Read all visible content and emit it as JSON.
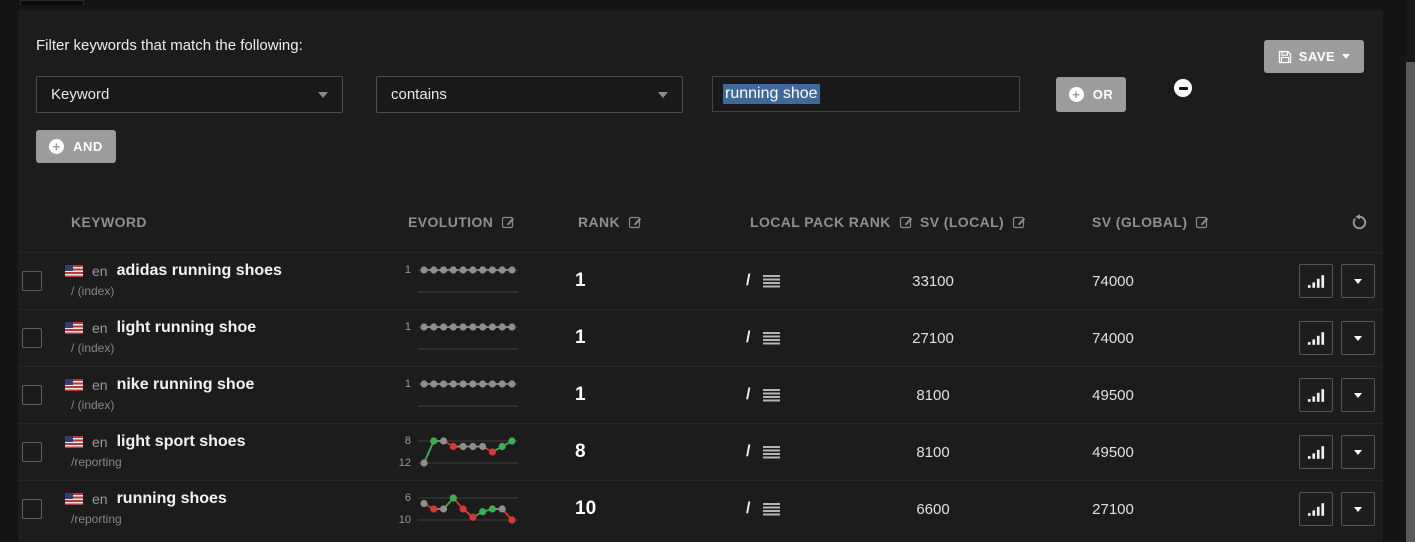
{
  "colors": {
    "green": "#3fae53",
    "red": "#d93636",
    "gray_dot": "#8f8f8f",
    "button_gray": "#9c9c9c",
    "selection_blue": "#3d6a9b"
  },
  "filter": {
    "title": "Filter keywords that match the following:",
    "field_select": "Keyword",
    "operator_select": "contains",
    "value_input": "running shoe",
    "or_label": "OR",
    "and_label": "AND",
    "save_label": "SAVE"
  },
  "table": {
    "headers": {
      "keyword": "KEYWORD",
      "evolution": "EVOLUTION",
      "rank": "RANK",
      "local_pack_rank": "LOCAL PACK RANK",
      "sv_local": "SV (LOCAL)",
      "sv_global": "SV (GLOBAL)"
    },
    "rows": [
      {
        "lang": "en",
        "flag": "us",
        "keyword": "adidas running shoes",
        "path": "/ (index)",
        "evolution": {
          "top_label": "1",
          "bottom_label": "",
          "min": 1,
          "max": 3,
          "values": [
            1,
            1,
            1,
            1,
            1,
            1,
            1,
            1,
            1,
            1
          ],
          "colors": [
            "gray",
            "gray",
            "gray",
            "gray",
            "gray",
            "gray",
            "gray",
            "gray",
            "gray",
            "gray"
          ]
        },
        "rank": "1",
        "local_pack_rank": "/",
        "sv_local": "33100",
        "sv_global": "74000"
      },
      {
        "lang": "en",
        "flag": "us",
        "keyword": "light running shoe",
        "path": "/ (index)",
        "evolution": {
          "top_label": "1",
          "bottom_label": "",
          "min": 1,
          "max": 3,
          "values": [
            1,
            1,
            1,
            1,
            1,
            1,
            1,
            1,
            1,
            1
          ],
          "colors": [
            "gray",
            "gray",
            "gray",
            "gray",
            "gray",
            "gray",
            "gray",
            "gray",
            "gray",
            "gray"
          ]
        },
        "rank": "1",
        "local_pack_rank": "/",
        "sv_local": "27100",
        "sv_global": "74000"
      },
      {
        "lang": "en",
        "flag": "us",
        "keyword": "nike running shoe",
        "path": "/ (index)",
        "evolution": {
          "top_label": "1",
          "bottom_label": "",
          "min": 1,
          "max": 3,
          "values": [
            1,
            1,
            1,
            1,
            1,
            1,
            1,
            1,
            1,
            1
          ],
          "colors": [
            "gray",
            "gray",
            "gray",
            "gray",
            "gray",
            "gray",
            "gray",
            "gray",
            "gray",
            "gray"
          ]
        },
        "rank": "1",
        "local_pack_rank": "/",
        "sv_local": "8100",
        "sv_global": "49500"
      },
      {
        "lang": "en",
        "flag": "us",
        "keyword": "light sport shoes",
        "path": "/reporting",
        "evolution": {
          "top_label": "8",
          "bottom_label": "12",
          "min": 8,
          "max": 12,
          "values": [
            12,
            8,
            8,
            9,
            9,
            9,
            9,
            10,
            9,
            8
          ],
          "colors": [
            "gray",
            "green",
            "gray",
            "red",
            "gray",
            "gray",
            "gray",
            "red",
            "green",
            "green"
          ]
        },
        "rank": "8",
        "local_pack_rank": "/",
        "sv_local": "8100",
        "sv_global": "49500"
      },
      {
        "lang": "en",
        "flag": "us",
        "keyword": "running shoes",
        "path": "/reporting",
        "evolution": {
          "top_label": "6",
          "bottom_label": "10",
          "min": 6,
          "max": 10,
          "values": [
            7,
            8,
            8,
            6,
            8,
            9.5,
            8.5,
            8,
            8,
            10
          ],
          "colors": [
            "gray",
            "red",
            "gray",
            "green",
            "red",
            "red",
            "green",
            "green",
            "gray",
            "red"
          ]
        },
        "rank": "10",
        "local_pack_rank": "/",
        "sv_local": "6600",
        "sv_global": "27100"
      }
    ]
  }
}
